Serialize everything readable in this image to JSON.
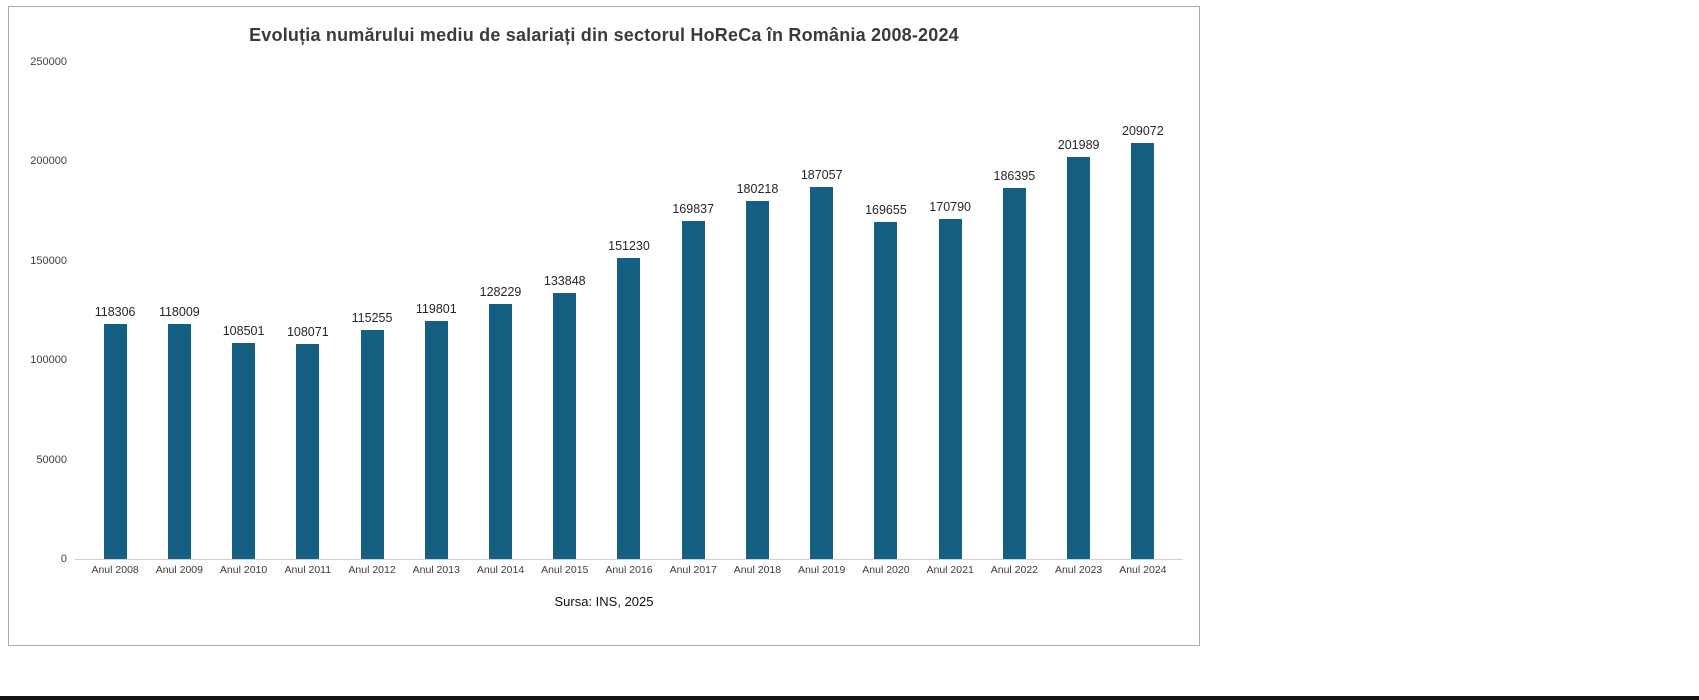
{
  "chart_data": {
    "type": "bar",
    "title": "Evoluția numărului mediu de salariați din sectorul HoReCa în România 2008-2024",
    "categories": [
      "Anul 2008",
      "Anul 2009",
      "Anul 2010",
      "Anul 2011",
      "Anul 2012",
      "Anul 2013",
      "Anul 2014",
      "Anul 2015",
      "Anul 2016",
      "Anul 2017",
      "Anul 2018",
      "Anul 2019",
      "Anul 2020",
      "Anul 2021",
      "Anul 2022",
      "Anul 2023",
      "Anul 2024"
    ],
    "values": [
      118306,
      118009,
      108501,
      108071,
      115255,
      119801,
      128229,
      133848,
      151230,
      169837,
      180218,
      187057,
      169655,
      170790,
      186395,
      201989,
      209072
    ],
    "xlabel": "",
    "ylabel": "",
    "ylim": [
      0,
      250000
    ],
    "yticks": [
      0,
      50000,
      100000,
      150000,
      200000,
      250000
    ],
    "grid": false,
    "legend_position": "none",
    "bar_color": "#156082",
    "source": "Sursa: INS, 2025"
  }
}
